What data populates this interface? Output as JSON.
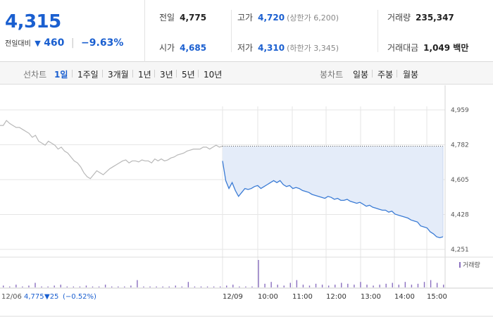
{
  "summary": {
    "current_price": "4,315",
    "change_label": "전일대비",
    "change_triangle": "▼",
    "change_amount": "460",
    "change_percent": "−9.63%",
    "prev_close": {
      "label": "전일",
      "value": "4,775"
    },
    "open": {
      "label": "시가",
      "value": "4,685"
    },
    "high": {
      "label": "고가",
      "value": "4,720",
      "sub": "(상한가 6,200)"
    },
    "low": {
      "label": "저가",
      "value": "4,310",
      "sub": "(하한가 3,345)"
    },
    "volume": {
      "label": "거래량",
      "value": "235,347"
    },
    "amount": {
      "label": "거래대금",
      "value": "1,049 백만"
    }
  },
  "toolbar": {
    "line_label": "선차트",
    "periods": [
      "1일",
      "1주일",
      "3개월",
      "1년",
      "3년",
      "5년",
      "10년"
    ],
    "active_period": "1일",
    "candle_label": "봉차트",
    "candle_periods": [
      "일봉",
      "주봉",
      "월봉"
    ]
  },
  "colors": {
    "accent_blue": "#1a5fd0",
    "today_line": "#3a7bd5",
    "prev_line": "#b8b8b8",
    "area_fill": "#e4ecf9",
    "volume_bar": "#8a6fc0",
    "grid": "#e6e6e6"
  },
  "chart_data": {
    "type": "line",
    "ylim": [
      4251,
      4959
    ],
    "yticks": [
      "4,959",
      "4,782",
      "4,605",
      "4,428",
      "4,251"
    ],
    "ytick_values": [
      4959,
      4782,
      4605,
      4428,
      4251
    ],
    "reference_value": 4775,
    "x_labels": [
      "12/06",
      "12/09",
      "10:00",
      "11:00",
      "12:00",
      "13:00",
      "14:00",
      "15:00"
    ],
    "grid": true,
    "series": [
      {
        "values": [
          4880,
          4880,
          4905,
          4890,
          4880,
          4870,
          4870,
          4860,
          4850,
          4840,
          4820,
          4830,
          4800,
          4790,
          4780,
          4800,
          4790,
          4780,
          4760,
          4770,
          4750,
          4740,
          4720,
          4700,
          4690,
          4670,
          4640,
          4620,
          4610,
          4630,
          4650,
          4640,
          4630,
          4645,
          4660,
          4670,
          4680,
          4690,
          4700,
          4705,
          4690,
          4700,
          4700,
          4695,
          4705,
          4700,
          4700,
          4690,
          4710,
          4700,
          4710,
          4700,
          4705,
          4715,
          4720,
          4730,
          4735,
          4740,
          4750,
          4755,
          4760,
          4760,
          4760,
          4770,
          4770,
          4760,
          4770,
          4780,
          4770,
          4775
        ]
      },
      {
        "values": [
          4700,
          4600,
          4560,
          4590,
          4550,
          4520,
          4540,
          4560,
          4555,
          4560,
          4570,
          4575,
          4560,
          4570,
          4580,
          4590,
          4600,
          4590,
          4600,
          4580,
          4570,
          4575,
          4560,
          4565,
          4560,
          4550,
          4545,
          4540,
          4530,
          4525,
          4520,
          4515,
          4510,
          4520,
          4515,
          4505,
          4510,
          4500,
          4500,
          4505,
          4495,
          4490,
          4485,
          4490,
          4480,
          4470,
          4475,
          4465,
          4460,
          4455,
          4450,
          4450,
          4440,
          4445,
          4430,
          4425,
          4420,
          4415,
          4410,
          4400,
          4395,
          4390,
          4370,
          4365,
          4360,
          4340,
          4330,
          4315,
          4310,
          4315
        ]
      }
    ],
    "volume": [
      2,
      1,
      3,
      1,
      2,
      5,
      1,
      1,
      2,
      3,
      1,
      1,
      1,
      2,
      1,
      1,
      3,
      1,
      1,
      1,
      2,
      8,
      1,
      1,
      1,
      1,
      1,
      2,
      1,
      6,
      1,
      1,
      1,
      1,
      1,
      2,
      3,
      1,
      1,
      1,
      30,
      4,
      6,
      3,
      2,
      5,
      8,
      3,
      2,
      4,
      3,
      2,
      3,
      5,
      4,
      3,
      6,
      3,
      2,
      3,
      4,
      5,
      3,
      6,
      3,
      4,
      6,
      8,
      5,
      3
    ],
    "volume_label": "거래량"
  },
  "footer": {
    "prev_date": "12/06",
    "prev_close": "4,775",
    "prev_change": "▼25",
    "prev_pct": "(−0.52%)"
  }
}
